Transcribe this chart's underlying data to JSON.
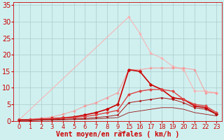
{
  "background_color": "#d0f0f0",
  "grid_color": "#aacccc",
  "xlabel": "Vent moyen/en rafales ( km/h )",
  "xlabel_color": "#cc0000",
  "xlabel_fontsize": 7,
  "tick_color": "#cc0000",
  "yticks": [
    0,
    5,
    10,
    15,
    20,
    25,
    30,
    35
  ],
  "ylim": [
    0,
    36
  ],
  "xlim": [
    -0.5,
    18.5
  ],
  "xtick_positions": [
    0,
    1,
    2,
    3,
    4,
    5,
    6,
    7,
    8,
    9,
    10,
    11,
    12,
    13,
    14,
    15,
    16,
    17,
    18
  ],
  "xtick_labels": [
    "0",
    "1",
    "2",
    "3",
    "4",
    "5",
    "6",
    "7",
    "8",
    "9",
    "15",
    "16",
    "17",
    "18",
    "19",
    "20",
    "21",
    "22",
    "23"
  ],
  "lines": [
    {
      "x": [
        0,
        10,
        11,
        12,
        13,
        14,
        15,
        16,
        17,
        18
      ],
      "y": [
        0.3,
        31.5,
        26.5,
        20.5,
        19.0,
        16.5,
        15.5,
        9.0,
        9.0,
        8.5
      ],
      "color": "#ffaaaa",
      "linewidth": 0.9,
      "marker": "D",
      "markersize": 2.0,
      "alpha": 0.75
    },
    {
      "x": [
        0,
        1,
        2,
        3,
        4,
        5,
        6,
        7,
        8,
        9,
        10,
        11,
        12,
        13,
        14,
        15,
        16,
        17,
        18
      ],
      "y": [
        0.3,
        0.5,
        0.8,
        1.2,
        2.0,
        3.0,
        4.5,
        5.5,
        7.0,
        8.5,
        15.5,
        15.5,
        16.0,
        16.0,
        16.0,
        16.0,
        15.5,
        8.5,
        8.5
      ],
      "color": "#ff8888",
      "linewidth": 0.9,
      "marker": "D",
      "markersize": 2.0,
      "alpha": 0.65
    },
    {
      "x": [
        0,
        1,
        2,
        3,
        4,
        5,
        6,
        7,
        8,
        9,
        10,
        11,
        12,
        13,
        14,
        15,
        16,
        17,
        18
      ],
      "y": [
        0.3,
        0.4,
        0.5,
        0.7,
        0.9,
        1.2,
        1.8,
        2.5,
        3.5,
        5.0,
        15.5,
        15.0,
        11.0,
        9.5,
        7.0,
        6.5,
        4.5,
        4.0,
        2.0
      ],
      "color": "#cc0000",
      "linewidth": 1.2,
      "marker": "D",
      "markersize": 2.5,
      "alpha": 1.0
    },
    {
      "x": [
        0,
        1,
        2,
        3,
        4,
        5,
        6,
        7,
        8,
        9,
        10,
        11,
        12,
        13,
        14,
        15,
        16,
        17,
        18
      ],
      "y": [
        0.3,
        0.4,
        0.5,
        0.6,
        0.8,
        1.0,
        1.3,
        1.8,
        2.5,
        3.2,
        8.0,
        9.0,
        9.5,
        9.5,
        9.0,
        6.5,
        5.0,
        4.5,
        2.5
      ],
      "color": "#dd4444",
      "linewidth": 1.0,
      "marker": "D",
      "markersize": 2.2,
      "alpha": 1.0
    },
    {
      "x": [
        0,
        1,
        2,
        3,
        4,
        5,
        6,
        7,
        8,
        9,
        10,
        11,
        12,
        13,
        14,
        15,
        16,
        17,
        18
      ],
      "y": [
        0.2,
        0.2,
        0.3,
        0.4,
        0.5,
        0.6,
        0.7,
        1.0,
        1.3,
        1.8,
        5.5,
        6.0,
        6.5,
        7.0,
        6.5,
        5.5,
        4.0,
        3.5,
        2.0
      ],
      "color": "#aa1111",
      "linewidth": 0.7,
      "marker": "D",
      "markersize": 1.5,
      "alpha": 1.0
    },
    {
      "x": [
        0,
        1,
        2,
        3,
        4,
        5,
        6,
        7,
        8,
        9,
        10,
        11,
        12,
        13,
        14,
        15,
        16,
        17,
        18
      ],
      "y": [
        0.1,
        0.1,
        0.2,
        0.2,
        0.3,
        0.4,
        0.5,
        0.6,
        0.8,
        1.0,
        2.5,
        3.0,
        3.5,
        4.0,
        4.0,
        3.5,
        2.5,
        2.0,
        1.5
      ],
      "color": "#991111",
      "linewidth": 0.6,
      "marker": null,
      "markersize": 0,
      "alpha": 1.0
    }
  ]
}
